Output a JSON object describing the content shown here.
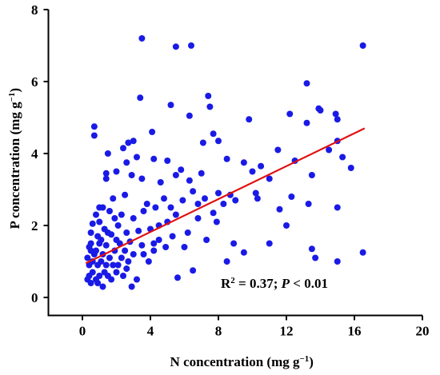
{
  "chart_data": {
    "type": "scatter",
    "xlabel": [
      "N concentration (mg g",
      "−1",
      ")"
    ],
    "ylabel": [
      "P concentration (mg g",
      "−1",
      ")"
    ],
    "annotation": [
      "R",
      "2",
      " = 0.37; ",
      "P",
      " < 0.01"
    ],
    "xlim": [
      -2,
      20
    ],
    "ylim": [
      -0.5,
      8
    ],
    "xticks": [
      0,
      4,
      8,
      12,
      16,
      20
    ],
    "yticks": [
      0,
      2,
      4,
      6,
      8
    ],
    "series": [
      {
        "color": "#1a1ae6",
        "x": [
          3.5,
          5.5,
          6.4,
          16.5,
          13.2,
          0.7,
          0.7,
          3.4,
          5.2,
          7.4,
          7.5,
          6.3,
          12.2,
          13.9,
          14.0,
          14.9,
          15.0,
          9.8,
          13.2,
          4.1,
          7.7,
          7.1,
          8.0,
          2.7,
          2.4,
          3.0,
          1.5,
          14.5,
          15.0,
          11.5,
          12.5,
          15.8,
          15.3,
          13.5,
          10.5,
          9.5,
          8.5,
          5.0,
          4.2,
          3.2,
          2.6,
          2.0,
          1.4,
          1.4,
          2.9,
          3.5,
          4.6,
          5.5,
          5.8,
          6.3,
          7.0,
          10.0,
          11.0,
          10.2,
          10.3,
          12.3,
          13.3,
          15.0,
          11.6,
          8.7,
          8.0,
          7.2,
          6.5,
          5.9,
          4.8,
          3.8,
          2.5,
          1.8,
          1.2,
          0.8,
          1.0,
          1.6,
          2.3,
          3.0,
          3.6,
          4.3,
          5.0,
          5.5,
          6.8,
          7.7,
          8.3,
          2.1,
          1.3,
          0.5,
          0.9,
          1.7,
          2.6,
          3.3,
          4.0,
          4.5,
          5.3,
          6.2,
          7.3,
          8.9,
          11.0,
          13.5,
          15.0,
          16.5,
          13.7,
          9.5,
          8.5,
          6.5,
          5.6,
          4.2,
          3.5,
          2.8,
          2.2,
          1.9,
          1.4,
          1.0,
          0.5,
          0.3,
          0.4,
          0.6,
          0.8,
          0.5,
          1.2,
          1.5,
          1.8,
          2.3,
          2.6,
          3.2,
          2.9,
          3.0,
          4.5,
          4.9,
          3.9,
          0.7,
          0.9,
          1.1,
          1.3,
          1.6,
          2.0,
          0.4,
          0.6,
          0.8,
          1.0,
          1.2,
          1.7,
          2.4,
          0.3,
          0.5,
          1.1,
          1.5,
          2.0,
          2.7,
          3.6,
          4.2,
          6.0,
          5.2,
          6.8,
          7.9,
          9.0,
          12.0,
          1.9,
          0.6,
          1.0,
          0.4,
          0.9,
          1.4,
          2.1,
          2.5
        ],
        "values": [
          7.2,
          6.97,
          7.0,
          7.0,
          5.95,
          4.75,
          4.5,
          5.55,
          5.35,
          5.6,
          5.3,
          5.05,
          5.1,
          5.25,
          5.2,
          5.1,
          4.95,
          4.95,
          4.85,
          4.6,
          4.55,
          4.3,
          4.35,
          4.3,
          4.15,
          4.35,
          4.0,
          4.1,
          4.35,
          4.1,
          3.8,
          3.6,
          3.9,
          3.4,
          3.65,
          3.75,
          3.85,
          3.8,
          3.85,
          3.9,
          3.75,
          3.5,
          3.45,
          3.3,
          3.4,
          3.3,
          3.2,
          3.4,
          3.55,
          3.25,
          3.45,
          3.5,
          3.3,
          2.9,
          2.75,
          2.8,
          2.6,
          2.5,
          2.45,
          2.85,
          2.9,
          2.75,
          2.95,
          2.7,
          2.75,
          2.6,
          2.85,
          2.75,
          2.5,
          2.3,
          2.1,
          2.4,
          2.3,
          2.2,
          2.4,
          2.5,
          2.1,
          2.3,
          2.2,
          2.35,
          2.6,
          2.0,
          1.9,
          1.8,
          1.7,
          1.75,
          1.8,
          1.85,
          1.9,
          2.0,
          1.7,
          1.8,
          1.6,
          1.5,
          1.5,
          1.35,
          1.0,
          1.25,
          1.1,
          1.25,
          1.0,
          0.75,
          0.55,
          1.3,
          1.45,
          1.55,
          1.5,
          1.3,
          1.45,
          1.5,
          1.3,
          1.1,
          0.9,
          0.7,
          0.5,
          0.4,
          0.3,
          0.6,
          0.9,
          1.1,
          0.8,
          0.5,
          0.3,
          1.2,
          1.6,
          1.4,
          1.0,
          1.2,
          0.9,
          1.0,
          0.7,
          1.1,
          0.7,
          0.6,
          1.0,
          1.3,
          0.6,
          1.2,
          0.5,
          0.6,
          0.5,
          1.5,
          1.6,
          1.8,
          1.6,
          1.0,
          1.2,
          1.5,
          1.4,
          2.5,
          2.6,
          2.1,
          2.7,
          2.0,
          2.2,
          2.05,
          2.5,
          1.4,
          0.4,
          0.9,
          0.9,
          1.3
        ]
      }
    ],
    "fit": {
      "color": "#e01010",
      "x": [
        0.2,
        16.6
      ],
      "values": [
        0.95,
        4.7
      ]
    }
  }
}
